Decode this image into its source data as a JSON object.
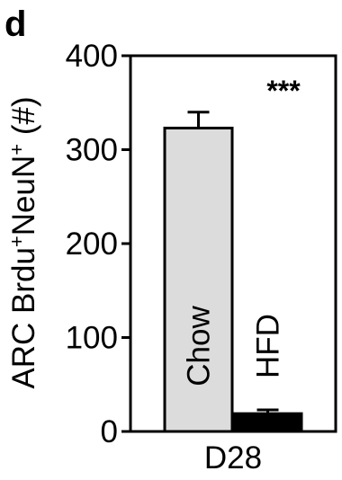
{
  "panel_letter": "d",
  "chart_data": {
    "type": "bar",
    "categories": [
      "Chow",
      "HFD"
    ],
    "values": [
      323,
      19
    ],
    "errors": [
      17,
      4
    ],
    "colors": [
      "#dcdcdc",
      "#000000"
    ],
    "ylim": [
      0,
      400
    ],
    "yticks": [
      0,
      100,
      200,
      300,
      400
    ],
    "ylabel_parts": [
      "ARC Brdu",
      "+",
      "NeuN",
      "+",
      " (#)"
    ],
    "xlabel": "D28",
    "significance": "***",
    "grid": false,
    "legend": "none"
  }
}
